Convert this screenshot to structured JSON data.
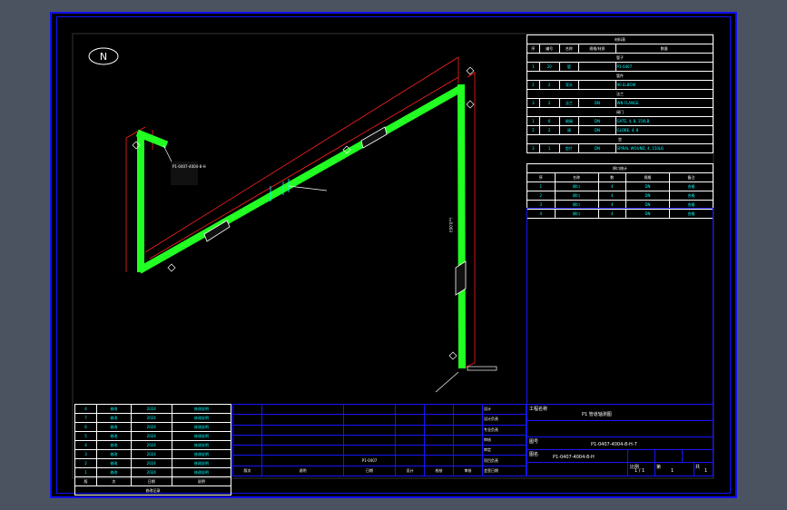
{
  "colors": {
    "background": "#4b5360",
    "sheet": "#000000",
    "frame": "#1010ff",
    "pipe": "#22ff22",
    "dimension": "#ff2020",
    "text": "#ffffff",
    "table_text": "#00ffff"
  },
  "drawing": {
    "north_label": "N",
    "pipe_tag": "P1-0407-4004-8-H",
    "slope": "i=0.003"
  },
  "material_table": {
    "title": "材料表",
    "headers": [
      "序",
      "编号",
      "名称",
      "规格/材质",
      "数量"
    ],
    "sections": [
      {
        "label": "管子",
        "rows": [
          [
            "1",
            "20",
            "管",
            "",
            "P1-0407"
          ]
        ]
      },
      {
        "label": "管件",
        "rows": [
          [
            "2",
            "2",
            "弯头",
            "",
            "90 ELBOW"
          ]
        ]
      },
      {
        "label": "法兰",
        "rows": [
          [
            "3",
            "2",
            "法兰",
            "DN",
            "WN FLANGE"
          ]
        ]
      },
      {
        "label": "阀门",
        "rows": [
          [
            "1",
            "6",
            "闸阀",
            "DN",
            "GATE, 4, 8, 150LB"
          ],
          [
            "2",
            "2",
            "阀",
            "DN",
            "GLOBE, 4, 8"
          ]
        ]
      },
      {
        "label": "垫",
        "rows": [
          [
            "3",
            "1",
            "垫片",
            "DN",
            "SPIRAL WOUND, 4, 150LB"
          ]
        ]
      }
    ]
  },
  "weld_table": {
    "title": "焊口统计",
    "headers": [
      "序",
      "名称",
      "数",
      "规格",
      "备注"
    ],
    "rows": [
      [
        "1",
        "焊口",
        "4",
        "DN",
        "合格"
      ],
      [
        "2",
        "焊口",
        "4",
        "DN",
        "合格"
      ],
      [
        "3",
        "焊口",
        "4",
        "DN",
        "合格"
      ],
      [
        "4",
        "焊口",
        "4",
        "DN",
        "合格"
      ]
    ]
  },
  "revision_table": {
    "rows": [
      [
        "4",
        "修改",
        "2024",
        "修改说明"
      ],
      [
        "7",
        "修改",
        "2024",
        "修改说明"
      ],
      [
        "6",
        "修改",
        "2024",
        "修改说明"
      ],
      [
        "5",
        "修改",
        "2024",
        "修改说明"
      ],
      [
        "4",
        "修改",
        "2024",
        "修改说明"
      ],
      [
        "3",
        "修改",
        "2024",
        "修改说明"
      ],
      [
        "2",
        "修改",
        "2024",
        "修改说明"
      ],
      [
        "1",
        "修改",
        "2024",
        "修改说明"
      ]
    ],
    "header": [
      "版",
      "次",
      "日期",
      "说明"
    ],
    "footer": "修改记录"
  },
  "sign_block": {
    "labels": [
      "设计",
      "设计负责",
      "专业负责",
      "审核",
      "审定",
      "项目负责",
      "会签日期"
    ],
    "bottom": [
      "版次",
      "说明",
      "日期",
      "设计",
      "校核",
      "审核"
    ],
    "note": "P1-0407"
  },
  "title_block": {
    "project_label": "工程名称",
    "title": "P1 管道轴测图",
    "dwg_label": "图号",
    "drawing_no": "P1-0407-4004-8-H-7",
    "ref_label": "图名",
    "ref_no": "P1-0407-4004-8-H",
    "scale_label": "比例",
    "scale": "1 / 1",
    "sheet_label": "第",
    "sheet": "1",
    "total_label": "共",
    "total": "1"
  }
}
